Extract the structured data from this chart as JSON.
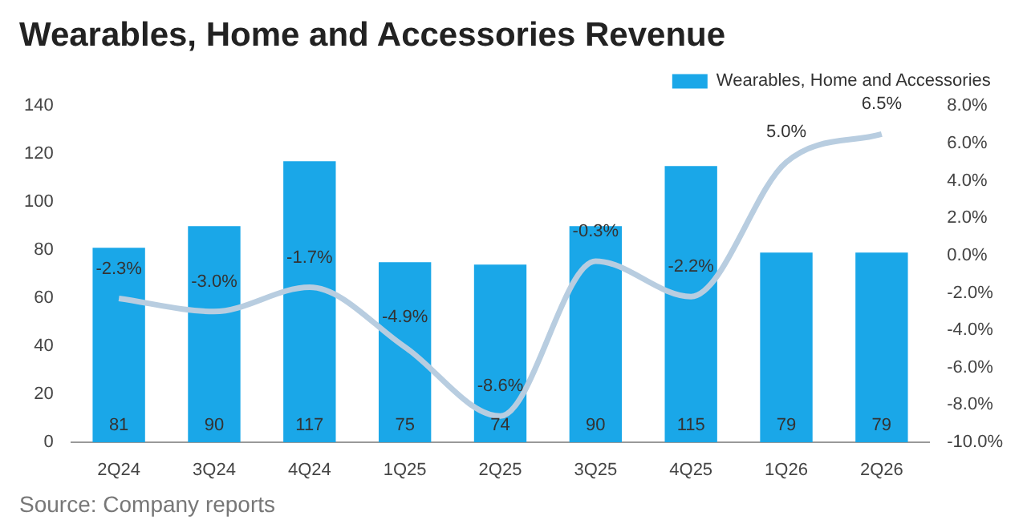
{
  "chart_data": {
    "type": "bar",
    "title": "Wearables, Home and Accessories Revenue",
    "categories": [
      "2Q24",
      "3Q24",
      "4Q24",
      "1Q25",
      "2Q25",
      "3Q25",
      "4Q25",
      "1Q26",
      "2Q26"
    ],
    "series": [
      {
        "name": "Wearables, Home and Accessories",
        "color": "#1aa7e8",
        "values": [
          81,
          90,
          117,
          75,
          74,
          90,
          115,
          79,
          79
        ],
        "value_labels": [
          "81",
          "90",
          "117",
          "75",
          "74",
          "90",
          "115",
          "79",
          "79"
        ]
      },
      {
        "type": "line",
        "axis": "y2",
        "color": "#b8cde0",
        "values": [
          -2.3,
          -3.0,
          -1.7,
          -4.9,
          -8.6,
          -0.3,
          -2.2,
          5.0,
          6.5
        ],
        "value_labels": [
          "-2.3%",
          "-3.0%",
          "-1.7%",
          "-4.9%",
          "-8.6%",
          "-0.3%",
          "-2.2%",
          "5.0%",
          "6.5%"
        ]
      }
    ],
    "ylim": [
      0,
      140
    ],
    "yticks": [
      0,
      20,
      40,
      60,
      80,
      100,
      120,
      140
    ],
    "y2lim": [
      -10,
      8
    ],
    "y2ticks": [
      {
        "value": -10,
        "label": "-10.0%"
      },
      {
        "value": -8,
        "label": "-8.0%"
      },
      {
        "value": -6,
        "label": "-6.0%"
      },
      {
        "value": -4,
        "label": "-4.0%"
      },
      {
        "value": -2,
        "label": "-2.0%"
      },
      {
        "value": 0,
        "label": "0.0%"
      },
      {
        "value": 2,
        "label": "2.0%"
      },
      {
        "value": 4,
        "label": "4.0%"
      },
      {
        "value": 6,
        "label": "6.0%"
      },
      {
        "value": 8,
        "label": "8.0%"
      }
    ],
    "grid": false,
    "legend": "top right",
    "marker": "none",
    "annotations": [
      "Source: Company reports"
    ]
  }
}
